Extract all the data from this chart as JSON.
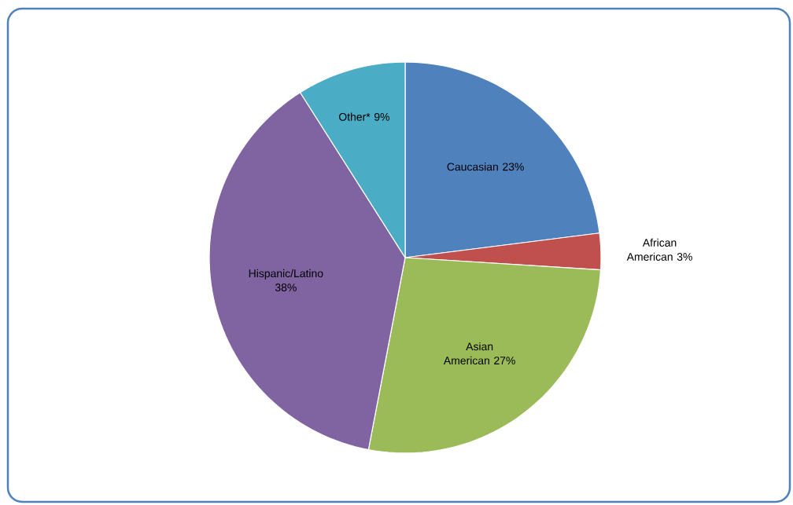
{
  "chart_data": {
    "type": "pie",
    "categories": [
      "Caucasian",
      "African American",
      "Asian American",
      "Hispanic/Latino",
      "Other*"
    ],
    "values": [
      23,
      3,
      27,
      38,
      9
    ],
    "value_labels": [
      "23%",
      "3%",
      "27%",
      "38%",
      "9%"
    ],
    "colors": [
      "#4f81bd",
      "#c0504d",
      "#9bbb59",
      "#8064a2",
      "#4bacc6"
    ]
  }
}
